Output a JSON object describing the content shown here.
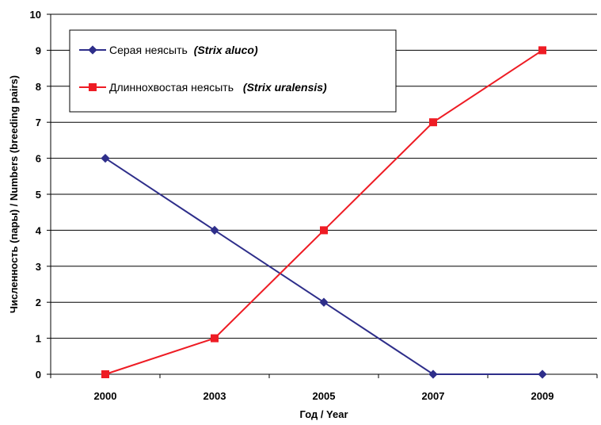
{
  "chart_data": {
    "type": "line",
    "title": "",
    "categories": [
      "2000",
      "2003",
      "2005",
      "2007",
      "2009"
    ],
    "xlabel": "Год / Year",
    "ylabel": "Численность (пары) / Numbers (breeding pairs)",
    "ylim": [
      0,
      10
    ],
    "yticks": [
      "0",
      "1",
      "2",
      "3",
      "4",
      "5",
      "6",
      "7",
      "8",
      "9",
      "10"
    ],
    "grid": true,
    "legend_position": "top-left",
    "series": [
      {
        "name": "Серая неясыть",
        "name_sci": "(Strix aluco)",
        "marker": "diamond",
        "color": "#2e2e8a",
        "values": [
          6,
          4,
          2,
          0,
          0
        ]
      },
      {
        "name": "Длиннохвостая неясыть",
        "name_sci": "(Strix uralensis)",
        "marker": "square",
        "color": "#ee1c24",
        "values": [
          0,
          1,
          4,
          7,
          9
        ]
      }
    ]
  }
}
